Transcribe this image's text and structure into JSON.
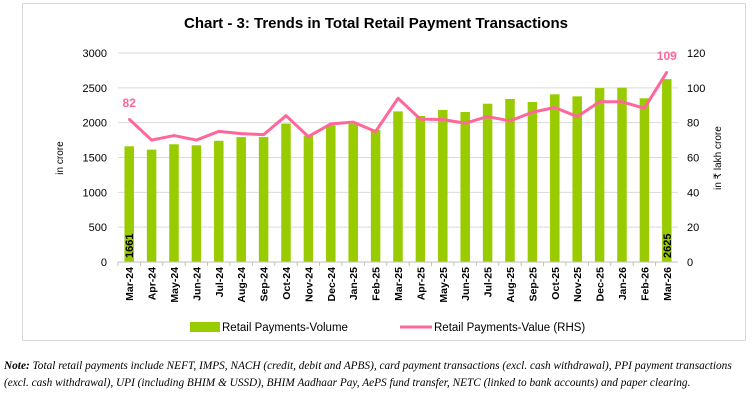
{
  "chart_data": {
    "type": "bar+line",
    "title": "Chart - 3: Trends in Total Retail Payment Transactions",
    "ylabel": "in crore",
    "y2label": "in ₹ lakh crore",
    "ylim": [
      0,
      3000
    ],
    "y2lim": [
      0,
      120
    ],
    "yticks": [
      "0",
      "500",
      "1000",
      "1500",
      "2000",
      "2500",
      "3000"
    ],
    "y2ticks": [
      "0",
      "20",
      "40",
      "60",
      "80",
      "100",
      "120"
    ],
    "grid": true,
    "legend": "bottom",
    "categories": [
      "Mar-24",
      "Apr-24",
      "May-24",
      "Jun-24",
      "Jul-24",
      "Aug-24",
      "Sep-24",
      "Oct-24",
      "Nov-24",
      "Dec-24",
      "Jan-25",
      "Feb-25",
      "Mar-25",
      "Apr-25",
      "May-25",
      "Jun-25",
      "Jul-25",
      "Aug-25",
      "Sep-25",
      "Oct-25",
      "Nov-25",
      "Dec-25",
      "Jan-26",
      "Feb-26",
      "Mar-26"
    ],
    "series": [
      {
        "name": "Retail Payments-Volume",
        "type": "bar",
        "axis": "left",
        "color": "#99cc00",
        "values": [
          1661,
          1613,
          1690,
          1675,
          1740,
          1793,
          1793,
          1986,
          1813,
          1963,
          1982,
          1894,
          2162,
          2096,
          2182,
          2153,
          2272,
          2340,
          2297,
          2407,
          2378,
          2497,
          2502,
          2350,
          2625
        ],
        "data_labels": {
          "0": "1661",
          "24": "2625"
        }
      },
      {
        "name": "Retail Payments-Value (RHS)",
        "type": "line",
        "axis": "right",
        "color": "#ff6699",
        "values": [
          82,
          70,
          72.6,
          70,
          75,
          73.7,
          73.1,
          84,
          72,
          79.3,
          80.3,
          74.9,
          94,
          82,
          81.8,
          79.7,
          83.5,
          81,
          86,
          88.7,
          83.5,
          92,
          92,
          88.3,
          109
        ],
        "data_labels": {
          "0": "82",
          "24": "109"
        }
      }
    ]
  },
  "note": {
    "label": "Note:",
    "text": " Total retail payments include NEFT, IMPS, NACH (credit, debit and APBS), card payment transactions (excl. cash withdrawal), PPI payment transactions (excl. cash withdrawal), UPI (including BHIM & USSD), BHIM Aadhaar Pay, AePS fund transfer, NETC (linked to bank accounts) and paper clearing."
  }
}
